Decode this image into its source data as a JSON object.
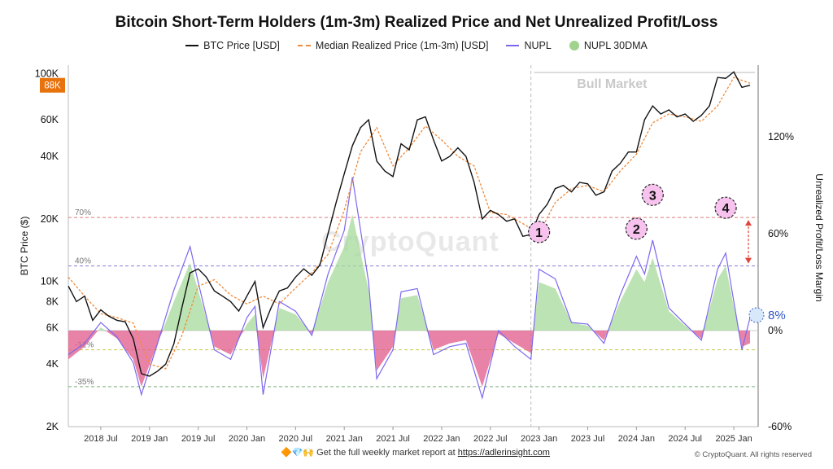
{
  "header": {
    "title": "Bitcoin Short-Term Holders (1m-3m)  Realized Price and Net Unrealized Profit/Loss"
  },
  "legend": [
    {
      "label": "BTC Price [USD]",
      "swatch": "line",
      "color": "#111111"
    },
    {
      "label": "Median Realized Price (1m-3m) [USD]",
      "swatch": "dash",
      "color": "#f08a3c"
    },
    {
      "label": "NUPL",
      "swatch": "purple",
      "color": "#7b68ee"
    },
    {
      "label": "NUPL 30DMA",
      "swatch": "dot",
      "color": "#9fd38e"
    }
  ],
  "watermark": "CryptoQuant",
  "footer": {
    "icons": "🔶💎🙌",
    "text": "Get the full weekly market report at",
    "link": "https://adlerinsight.com"
  },
  "copyright": "© CryptoQuant. All rights reserved",
  "chart_data": {
    "type": "line",
    "title": "Bitcoin Short-Term Holders (1m-3m)  Realized Price and Net Unrealized Profit/Loss",
    "x_ticks": [
      "2018 Jul",
      "2019 Jan",
      "2019 Jul",
      "2020 Jan",
      "2020 Jul",
      "2021 Jan",
      "2021 Jul",
      "2022 Jan",
      "2022 Jul",
      "2023 Jan",
      "2023 Jul",
      "2024 Jan",
      "2024 Jul",
      "2025 Jan"
    ],
    "left_axis": {
      "label": "BTC Price ($)",
      "scale": "log",
      "ticks": [
        "2K",
        "4K",
        "6K",
        "8K",
        "10K",
        "20K",
        "40K",
        "60K",
        "100K"
      ],
      "tick_values": [
        2000,
        4000,
        6000,
        8000,
        10000,
        20000,
        40000,
        60000,
        100000
      ]
    },
    "right_axis": {
      "label": "Unrealized Profit/Loss Margin",
      "ticks": [
        "120%",
        "60%",
        "0%",
        "-60%"
      ],
      "tick_values": [
        120,
        60,
        0,
        -60
      ]
    },
    "price_badge": "88K",
    "reference_lines": [
      {
        "label": "70%",
        "value": 70,
        "color": "#e07a7a"
      },
      {
        "label": "40%",
        "value": 40,
        "color": "#8a7fd8"
      },
      {
        "label": "-12%",
        "value": -12,
        "color": "#c8c84a"
      },
      {
        "label": "-35%",
        "value": -35,
        "color": "#7ab07a"
      }
    ],
    "regions": [
      {
        "label": "Bull Market",
        "start": "2022 Dec",
        "end": "2025 Mar"
      }
    ],
    "markers": [
      {
        "label": "1",
        "date": "2023 Jan",
        "nupl": 55
      },
      {
        "label": "2",
        "date": "2024 Jan",
        "nupl": 57
      },
      {
        "label": "3",
        "date": "2024 Mar",
        "nupl": 78
      },
      {
        "label": "4",
        "date": "2024 Dec",
        "nupl": 70
      }
    ],
    "current_nupl_label": "8%",
    "series": [
      {
        "name": "BTC Price [USD]",
        "color": "#111111",
        "points": [
          [
            "2018-03",
            9500
          ],
          [
            "2018-04",
            8000
          ],
          [
            "2018-05",
            8500
          ],
          [
            "2018-06",
            6500
          ],
          [
            "2018-07",
            7300
          ],
          [
            "2018-08",
            6800
          ],
          [
            "2018-09",
            6500
          ],
          [
            "2018-10",
            6400
          ],
          [
            "2018-11",
            5300
          ],
          [
            "2018-12",
            3600
          ],
          [
            "2019-01",
            3500
          ],
          [
            "2019-02",
            3700
          ],
          [
            "2019-03",
            4000
          ],
          [
            "2019-04",
            5000
          ],
          [
            "2019-05",
            7500
          ],
          [
            "2019-06",
            11000
          ],
          [
            "2019-07",
            11500
          ],
          [
            "2019-08",
            10500
          ],
          [
            "2019-09",
            9000
          ],
          [
            "2019-10",
            8500
          ],
          [
            "2019-11",
            8000
          ],
          [
            "2019-12",
            7200
          ],
          [
            "2020-01",
            8500
          ],
          [
            "2020-02",
            10000
          ],
          [
            "2020-03",
            6000
          ],
          [
            "2020-04",
            7500
          ],
          [
            "2020-05",
            9000
          ],
          [
            "2020-06",
            9300
          ],
          [
            "2020-07",
            10500
          ],
          [
            "2020-08",
            11500
          ],
          [
            "2020-09",
            10700
          ],
          [
            "2020-10",
            12000
          ],
          [
            "2020-11",
            17000
          ],
          [
            "2020-12",
            24000
          ],
          [
            "2021-01",
            33000
          ],
          [
            "2021-02",
            45000
          ],
          [
            "2021-03",
            55000
          ],
          [
            "2021-04",
            60000
          ],
          [
            "2021-05",
            38000
          ],
          [
            "2021-06",
            34000
          ],
          [
            "2021-07",
            32000
          ],
          [
            "2021-08",
            46000
          ],
          [
            "2021-09",
            43000
          ],
          [
            "2021-10",
            60000
          ],
          [
            "2021-11",
            62000
          ],
          [
            "2021-12",
            48000
          ],
          [
            "2022-01",
            38000
          ],
          [
            "2022-02",
            40000
          ],
          [
            "2022-03",
            44000
          ],
          [
            "2022-04",
            40000
          ],
          [
            "2022-05",
            30000
          ],
          [
            "2022-06",
            20000
          ],
          [
            "2022-07",
            22000
          ],
          [
            "2022-08",
            21000
          ],
          [
            "2022-09",
            19500
          ],
          [
            "2022-10",
            20000
          ],
          [
            "2022-11",
            16500
          ],
          [
            "2022-12",
            16800
          ],
          [
            "2023-01",
            21000
          ],
          [
            "2023-02",
            23500
          ],
          [
            "2023-03",
            28000
          ],
          [
            "2023-04",
            29000
          ],
          [
            "2023-05",
            27000
          ],
          [
            "2023-06",
            30000
          ],
          [
            "2023-07",
            29500
          ],
          [
            "2023-08",
            26000
          ],
          [
            "2023-09",
            27000
          ],
          [
            "2023-10",
            34000
          ],
          [
            "2023-11",
            37000
          ],
          [
            "2023-12",
            42000
          ],
          [
            "2024-01",
            42000
          ],
          [
            "2024-02",
            60000
          ],
          [
            "2024-03",
            70000
          ],
          [
            "2024-04",
            64000
          ],
          [
            "2024-05",
            67000
          ],
          [
            "2024-06",
            62000
          ],
          [
            "2024-07",
            64000
          ],
          [
            "2024-08",
            59000
          ],
          [
            "2024-09",
            63000
          ],
          [
            "2024-10",
            70000
          ],
          [
            "2024-11",
            96000
          ],
          [
            "2024-12",
            95000
          ],
          [
            "2025-01",
            102000
          ],
          [
            "2025-02",
            86000
          ],
          [
            "2025-03",
            88000
          ]
        ]
      },
      {
        "name": "Median Realized Price (1m-3m) [USD]",
        "color": "#f08a3c",
        "points": [
          [
            "2018-03",
            10500
          ],
          [
            "2018-05",
            8500
          ],
          [
            "2018-07",
            7000
          ],
          [
            "2018-09",
            6700
          ],
          [
            "2018-11",
            6300
          ],
          [
            "2019-01",
            4000
          ],
          [
            "2019-03",
            3800
          ],
          [
            "2019-05",
            5500
          ],
          [
            "2019-07",
            9500
          ],
          [
            "2019-09",
            10200
          ],
          [
            "2019-11",
            8600
          ],
          [
            "2020-01",
            7800
          ],
          [
            "2020-03",
            8500
          ],
          [
            "2020-05",
            7800
          ],
          [
            "2020-07",
            9300
          ],
          [
            "2020-09",
            11000
          ],
          [
            "2020-11",
            13500
          ],
          [
            "2021-01",
            22000
          ],
          [
            "2021-03",
            42000
          ],
          [
            "2021-05",
            55000
          ],
          [
            "2021-07",
            36000
          ],
          [
            "2021-09",
            44000
          ],
          [
            "2021-11",
            56000
          ],
          [
            "2022-01",
            48000
          ],
          [
            "2022-03",
            40000
          ],
          [
            "2022-05",
            36000
          ],
          [
            "2022-07",
            21500
          ],
          [
            "2022-09",
            21000
          ],
          [
            "2022-11",
            19000
          ],
          [
            "2023-01",
            17000
          ],
          [
            "2023-03",
            24000
          ],
          [
            "2023-05",
            28000
          ],
          [
            "2023-07",
            29000
          ],
          [
            "2023-09",
            27000
          ],
          [
            "2023-11",
            34000
          ],
          [
            "2024-01",
            41000
          ],
          [
            "2024-03",
            58000
          ],
          [
            "2024-05",
            64000
          ],
          [
            "2024-07",
            62000
          ],
          [
            "2024-09",
            59000
          ],
          [
            "2024-11",
            70000
          ],
          [
            "2025-01",
            96000
          ],
          [
            "2025-03",
            90000
          ]
        ]
      },
      {
        "name": "NUPL",
        "color": "#7b68ee",
        "points": [
          [
            "2018-03",
            -15
          ],
          [
            "2018-05",
            -8
          ],
          [
            "2018-07",
            5
          ],
          [
            "2018-09",
            -4
          ],
          [
            "2018-11",
            -20
          ],
          [
            "2018-12",
            -40
          ],
          [
            "2019-02",
            -8
          ],
          [
            "2019-04",
            25
          ],
          [
            "2019-06",
            52
          ],
          [
            "2019-07",
            30
          ],
          [
            "2019-09",
            -12
          ],
          [
            "2019-11",
            -18
          ],
          [
            "2020-01",
            8
          ],
          [
            "2020-02",
            15
          ],
          [
            "2020-03",
            -40
          ],
          [
            "2020-05",
            18
          ],
          [
            "2020-07",
            12
          ],
          [
            "2020-09",
            -3
          ],
          [
            "2020-11",
            35
          ],
          [
            "2021-01",
            62
          ],
          [
            "2021-02",
            95
          ],
          [
            "2021-04",
            30
          ],
          [
            "2021-05",
            -30
          ],
          [
            "2021-07",
            -12
          ],
          [
            "2021-08",
            24
          ],
          [
            "2021-10",
            26
          ],
          [
            "2021-12",
            -15
          ],
          [
            "2022-02",
            -10
          ],
          [
            "2022-04",
            -8
          ],
          [
            "2022-06",
            -42
          ],
          [
            "2022-08",
            0
          ],
          [
            "2022-10",
            -10
          ],
          [
            "2022-12",
            -18
          ],
          [
            "2023-01",
            38
          ],
          [
            "2023-03",
            32
          ],
          [
            "2023-05",
            5
          ],
          [
            "2023-07",
            4
          ],
          [
            "2023-09",
            -8
          ],
          [
            "2023-11",
            22
          ],
          [
            "2024-01",
            46
          ],
          [
            "2024-02",
            35
          ],
          [
            "2024-03",
            56
          ],
          [
            "2024-05",
            14
          ],
          [
            "2024-07",
            4
          ],
          [
            "2024-09",
            -6
          ],
          [
            "2024-11",
            38
          ],
          [
            "2024-12",
            48
          ],
          [
            "2025-01",
            18
          ],
          [
            "2025-02",
            -12
          ],
          [
            "2025-03",
            8
          ]
        ]
      },
      {
        "name": "NUPL 30DMA",
        "color": "#9fd38e",
        "points": [
          [
            "2018-03",
            -18
          ],
          [
            "2018-05",
            -10
          ],
          [
            "2018-07",
            2
          ],
          [
            "2018-09",
            -5
          ],
          [
            "2018-11",
            -18
          ],
          [
            "2018-12",
            -35
          ],
          [
            "2019-02",
            -8
          ],
          [
            "2019-04",
            18
          ],
          [
            "2019-06",
            42
          ],
          [
            "2019-07",
            25
          ],
          [
            "2019-09",
            -10
          ],
          [
            "2019-11",
            -15
          ],
          [
            "2020-01",
            4
          ],
          [
            "2020-02",
            10
          ],
          [
            "2020-03",
            -30
          ],
          [
            "2020-05",
            14
          ],
          [
            "2020-07",
            10
          ],
          [
            "2020-09",
            -2
          ],
          [
            "2020-11",
            30
          ],
          [
            "2021-01",
            52
          ],
          [
            "2021-02",
            72
          ],
          [
            "2021-04",
            25
          ],
          [
            "2021-05",
            -25
          ],
          [
            "2021-07",
            -10
          ],
          [
            "2021-08",
            20
          ],
          [
            "2021-10",
            22
          ],
          [
            "2021-12",
            -12
          ],
          [
            "2022-02",
            -8
          ],
          [
            "2022-04",
            -6
          ],
          [
            "2022-06",
            -35
          ],
          [
            "2022-08",
            -2
          ],
          [
            "2022-10",
            -8
          ],
          [
            "2022-12",
            -14
          ],
          [
            "2023-01",
            30
          ],
          [
            "2023-03",
            26
          ],
          [
            "2023-05",
            5
          ],
          [
            "2023-07",
            3
          ],
          [
            "2023-09",
            -6
          ],
          [
            "2023-11",
            18
          ],
          [
            "2024-01",
            38
          ],
          [
            "2024-02",
            30
          ],
          [
            "2024-03",
            45
          ],
          [
            "2024-05",
            12
          ],
          [
            "2024-07",
            3
          ],
          [
            "2024-09",
            -5
          ],
          [
            "2024-11",
            32
          ],
          [
            "2024-12",
            40
          ],
          [
            "2025-01",
            15
          ],
          [
            "2025-02",
            -10
          ],
          [
            "2025-03",
            -8
          ]
        ]
      }
    ]
  }
}
